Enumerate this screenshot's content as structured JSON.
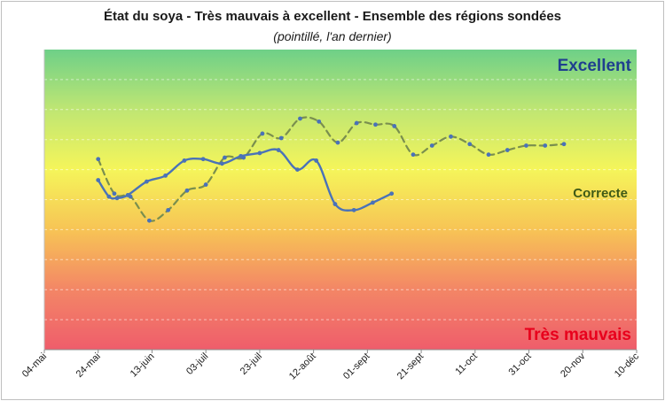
{
  "chart_data": {
    "type": "line",
    "title": "État du soya - Très mauvais à excellent - Ensemble des régions sondées",
    "subtitle": "(pointillé, l'an dernier)",
    "band_labels": {
      "excellent": "Excellent",
      "correcte": "Correcte",
      "tres_mauvais": "Très mauvais"
    },
    "x_axis": {
      "type": "date",
      "ticks": [
        "04-mai",
        "24-mai",
        "13-juin",
        "03-juil",
        "23-juil",
        "12-août",
        "01-sept",
        "21-sept",
        "11-oct",
        "31-oct",
        "20-nov",
        "10-déc"
      ],
      "range": [
        "04-mai",
        "10-déc"
      ]
    },
    "y_axis": {
      "range": [
        0,
        100
      ],
      "tick_step": 10,
      "tick_labels_visible": false
    },
    "background_gradient": [
      "#6ed088",
      "#bfe673",
      "#f5f55a",
      "#f7c455",
      "#f38666",
      "#ef5d6b"
    ],
    "label_colors": {
      "excellent": "#1f3f8f",
      "correcte": "#3f5a16",
      "tres_mauvais": "#e8001c"
    },
    "series": [
      {
        "line_style": "solid",
        "color": "#4a72b8",
        "marker_color": "#4a72b8",
        "points": [
          [
            "24-mai",
            56.5
          ],
          [
            "28-mai",
            51
          ],
          [
            "31-mai",
            50.5
          ],
          [
            "04-juin",
            51.5
          ],
          [
            "11-juin",
            56
          ],
          [
            "18-juin",
            58
          ],
          [
            "25-juin",
            63
          ],
          [
            "02-juil",
            63.5
          ],
          [
            "09-juil",
            62
          ],
          [
            "16-juil",
            64.5
          ],
          [
            "23-juil",
            65.5
          ],
          [
            "30-juil",
            66.5
          ],
          [
            "06-août",
            60
          ],
          [
            "13-août",
            63
          ],
          [
            "20-août",
            48.5
          ],
          [
            "27-août",
            46.5
          ],
          [
            "03-sept",
            49
          ],
          [
            "10-sept",
            52
          ]
        ]
      },
      {
        "line_style": "dashed",
        "color": "#7a8f4e",
        "marker_color": "#4a72b8",
        "points": [
          [
            "24-mai",
            63.5
          ],
          [
            "30-mai",
            52
          ],
          [
            "05-juin",
            51
          ],
          [
            "12-juin",
            43
          ],
          [
            "19-juin",
            46.5
          ],
          [
            "26-juin",
            53
          ],
          [
            "03-juil",
            55
          ],
          [
            "10-juil",
            64
          ],
          [
            "17-juil",
            64
          ],
          [
            "24-juil",
            72
          ],
          [
            "31-juil",
            70.5
          ],
          [
            "07-août",
            77
          ],
          [
            "14-août",
            76
          ],
          [
            "21-août",
            69
          ],
          [
            "28-août",
            75.5
          ],
          [
            "04-sept",
            75
          ],
          [
            "11-sept",
            74.5
          ],
          [
            "18-sept",
            65
          ],
          [
            "25-sept",
            68
          ],
          [
            "02-oct",
            71
          ],
          [
            "09-oct",
            68.5
          ],
          [
            "16-oct",
            65
          ],
          [
            "23-oct",
            66.5
          ],
          [
            "30-oct",
            68
          ],
          [
            "06-nov",
            68
          ],
          [
            "13-nov",
            68.5
          ]
        ]
      }
    ]
  }
}
